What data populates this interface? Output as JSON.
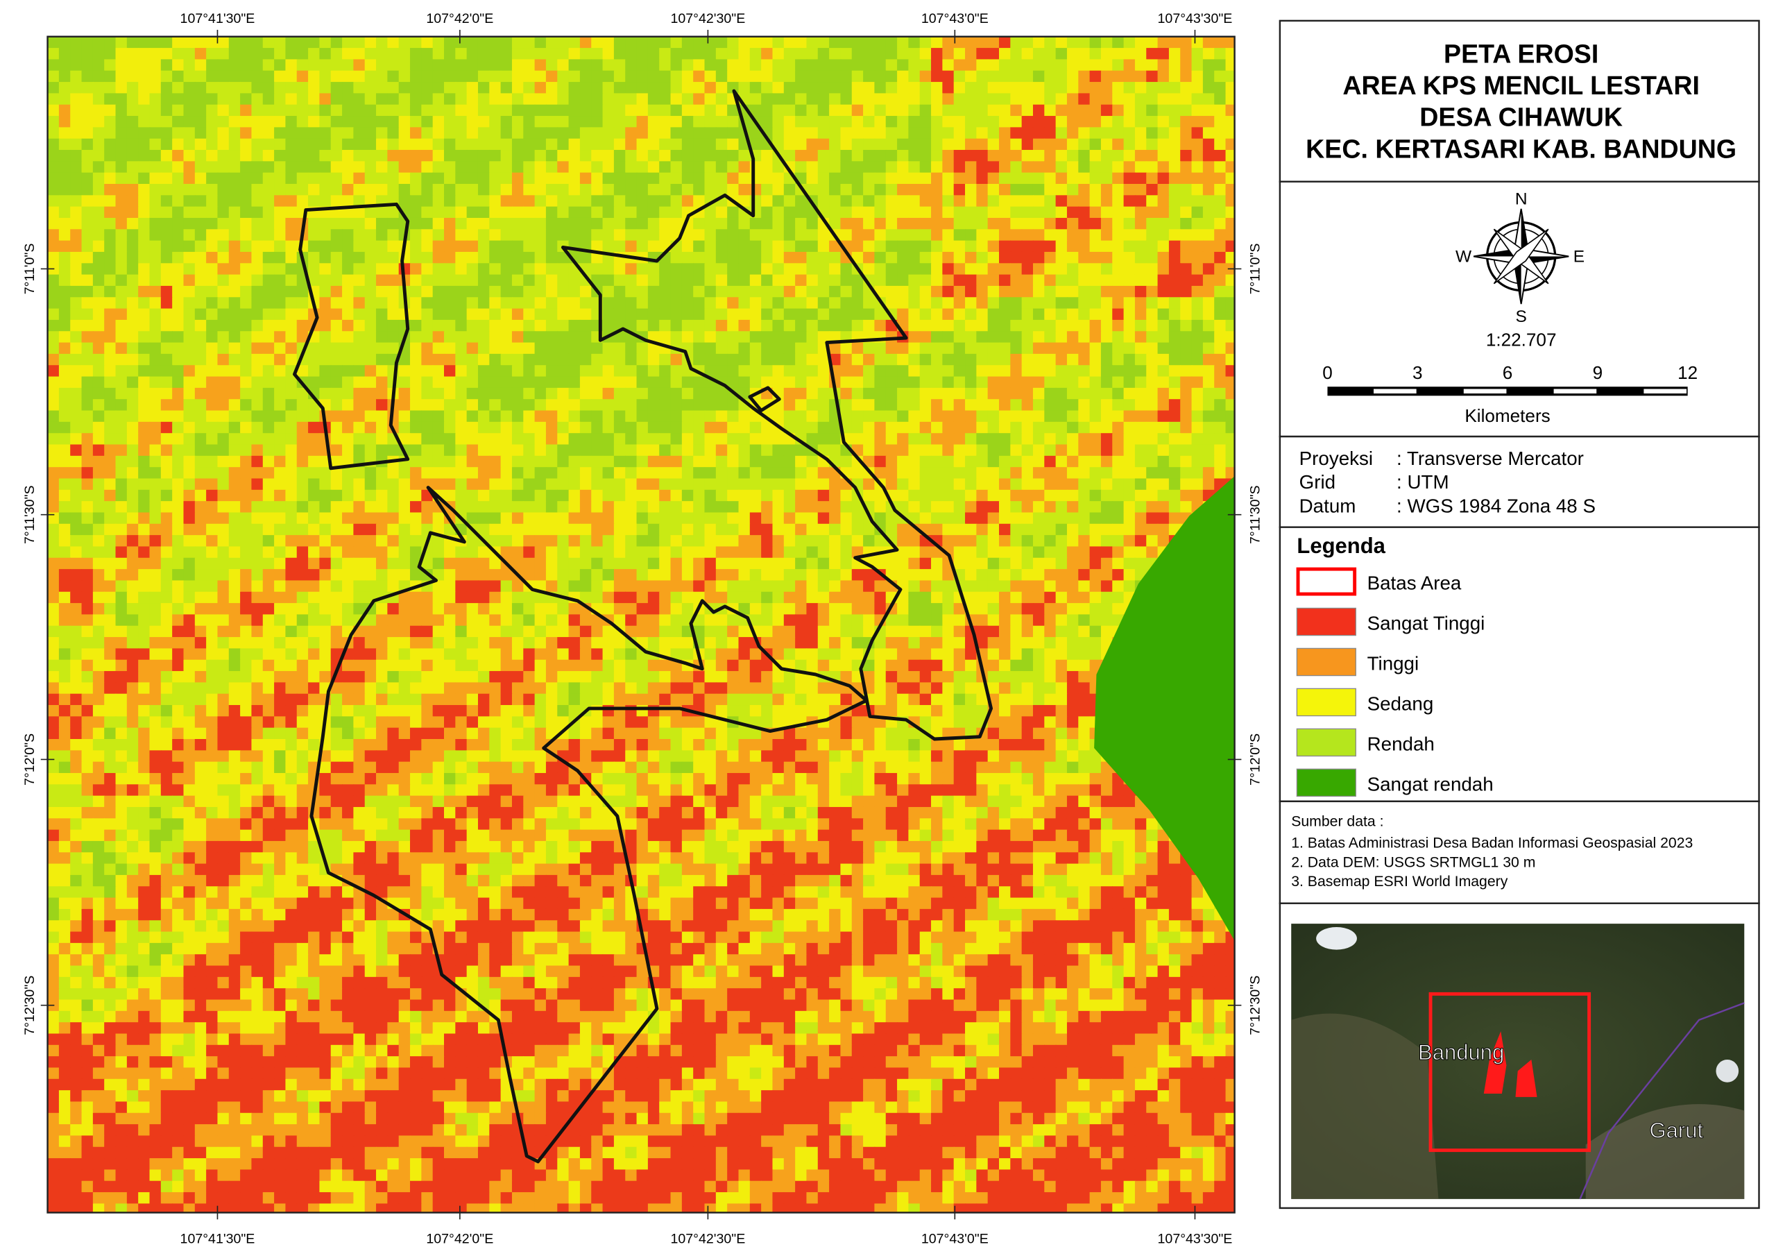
{
  "title_lines": [
    "PETA EROSI",
    "AREA KPS MENCIL LESTARI",
    "DESA CIHAWUK",
    "KEC. KERTASARI KAB. BANDUNG"
  ],
  "graticule": {
    "top": [
      "107°41'30\"E",
      "107°42'0\"E",
      "107°42'30\"E",
      "107°43'0\"E",
      "107°43'30\"E"
    ],
    "bottom": [
      "107°41'30\"E",
      "107°42'0\"E",
      "107°42'30\"E",
      "107°43'0\"E",
      "107°43'30\"E"
    ],
    "left": [
      "7°11'0\"S",
      "7°11'30\"S",
      "7°12'0\"S",
      "7°12'30\"S"
    ],
    "right": [
      "7°11'0\"S",
      "7°11'30\"S",
      "7°12'0\"S",
      "7°12'30\"S"
    ]
  },
  "compass": {
    "n": "N",
    "s": "S",
    "e": "E",
    "w": "W"
  },
  "scale": {
    "ratio": "1:22.707",
    "ticks": [
      "0",
      "3",
      "6",
      "9",
      "12"
    ],
    "unit": "Kilometers"
  },
  "projection": [
    {
      "key": "Proyeksi",
      "value": ": Transverse Mercator"
    },
    {
      "key": "Grid",
      "value": ": UTM"
    },
    {
      "key": "Datum",
      "value": ": WGS 1984 Zona 48 S"
    }
  ],
  "legend": {
    "title": "Legenda",
    "items": [
      {
        "label": "Batas Area",
        "color": "#ff0000",
        "outline": true
      },
      {
        "label": "Sangat Tinggi",
        "color": "#f2311c"
      },
      {
        "label": "Tinggi",
        "color": "#f7961e"
      },
      {
        "label": "Sedang",
        "color": "#f5f50a"
      },
      {
        "label": "Rendah",
        "color": "#b5e61d"
      },
      {
        "label": "Sangat rendah",
        "color": "#38a800"
      }
    ]
  },
  "sources": {
    "title": "Sumber data :",
    "items": [
      "1. Batas Administrasi Desa Badan Informasi Geospasial 2023",
      "2. Data DEM: USGS SRTMGL1 30 m",
      "3. Basemap ESRI World Imagery"
    ]
  },
  "inset": {
    "labels": [
      "Bandung",
      "Garut"
    ]
  }
}
